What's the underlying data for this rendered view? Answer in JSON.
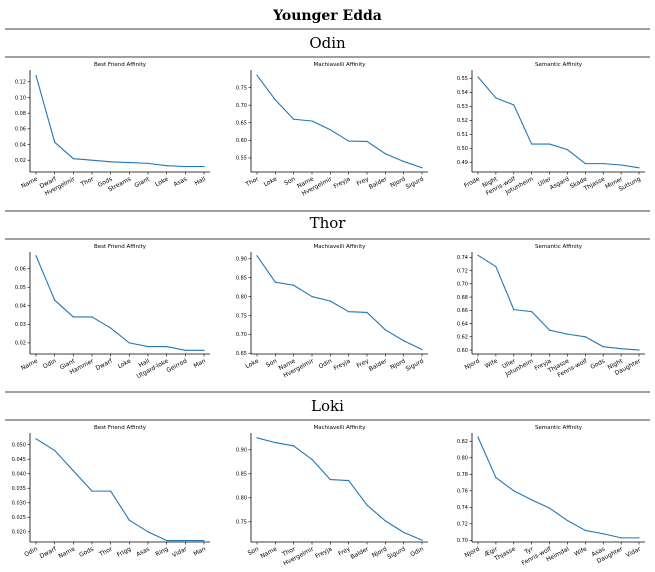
{
  "title": "Younger Edda",
  "sections": [
    {
      "name": "Odin",
      "charts": [
        {
          "type": "line",
          "title": "Best Friend Affinity",
          "categories": [
            "Name",
            "Dwarf",
            "Hvergelmir",
            "Thor",
            "Gods",
            "Streams",
            "Giant",
            "Loke",
            "Asas",
            "Hall"
          ],
          "values": [
            0.128,
            0.043,
            0.022,
            0.02,
            0.018,
            0.017,
            0.016,
            0.013,
            0.012,
            0.012
          ],
          "ylim": [
            0.005,
            0.135
          ],
          "yticks": [
            "0.02",
            "0.04",
            "0.06",
            "0.08",
            "0.10",
            "0.12"
          ]
        },
        {
          "type": "line",
          "title": "Machiavelli Affinity",
          "categories": [
            "Thor",
            "Loke",
            "Son",
            "Name",
            "Hvergelmir",
            "Freyja",
            "Frey",
            "Balder",
            "Njord",
            "Sigurd"
          ],
          "values": [
            0.785,
            0.715,
            0.66,
            0.655,
            0.63,
            0.598,
            0.597,
            0.562,
            0.54,
            0.522
          ],
          "ylim": [
            0.51,
            0.8
          ],
          "yticks": [
            "0.55",
            "0.60",
            "0.65",
            "0.70",
            "0.75"
          ]
        },
        {
          "type": "line",
          "title": "Semantic Affinity",
          "categories": [
            "Frode",
            "Night",
            "Fenris-wolf",
            "Jotunheim",
            "Uller",
            "Asgard",
            "Skade",
            "Thjasse",
            "Mimer",
            "Suttung"
          ],
          "values": [
            0.551,
            0.536,
            0.531,
            0.503,
            0.503,
            0.499,
            0.489,
            0.489,
            0.488,
            0.486
          ],
          "ylim": [
            0.483,
            0.556
          ],
          "yticks": [
            "0.49",
            "0.50",
            "0.51",
            "0.52",
            "0.53",
            "0.54",
            "0.55"
          ]
        }
      ]
    },
    {
      "name": "Thor",
      "charts": [
        {
          "type": "line",
          "title": "Best Friend Affinity",
          "categories": [
            "Name",
            "Odin",
            "Giant",
            "Hammer",
            "Dwarf",
            "Loke",
            "Hall",
            "Utgard-loke",
            "Geirrod",
            "Man"
          ],
          "values": [
            0.067,
            0.043,
            0.034,
            0.034,
            0.028,
            0.02,
            0.018,
            0.018,
            0.016,
            0.016
          ],
          "ylim": [
            0.014,
            0.069
          ],
          "yticks": [
            "0.02",
            "0.03",
            "0.04",
            "0.05",
            "0.06"
          ]
        },
        {
          "type": "line",
          "title": "Machiavelli Affinity",
          "categories": [
            "Loke",
            "Son",
            "Name",
            "Hvergelmir",
            "Odin",
            "Freyja",
            "Frey",
            "Balder",
            "Njord",
            "Sigurd"
          ],
          "values": [
            0.908,
            0.838,
            0.83,
            0.8,
            0.788,
            0.76,
            0.758,
            0.712,
            0.683,
            0.66
          ],
          "ylim": [
            0.648,
            0.918
          ],
          "yticks": [
            "0.65",
            "0.70",
            "0.75",
            "0.80",
            "0.85",
            "0.90"
          ]
        },
        {
          "type": "line",
          "title": "Semantic Affinity",
          "categories": [
            "Njord",
            "Wife",
            "Uller",
            "Jotunheim",
            "Freyja",
            "Thjasse",
            "Fenris-wolf",
            "Gods",
            "Night",
            "Daughter"
          ],
          "values": [
            0.743,
            0.726,
            0.661,
            0.658,
            0.63,
            0.624,
            0.62,
            0.605,
            0.602,
            0.6
          ],
          "ylim": [
            0.594,
            0.748
          ],
          "yticks": [
            "0.60",
            "0.62",
            "0.64",
            "0.66",
            "0.68",
            "0.70",
            "0.72",
            "0.74"
          ]
        }
      ]
    },
    {
      "name": "Loki",
      "charts": [
        {
          "type": "line",
          "title": "Best Friend Affinity",
          "categories": [
            "Odin",
            "Dwarf",
            "Name",
            "Gods",
            "Thor",
            "Frigg",
            "Asas",
            "Ring",
            "Vidar",
            "Man"
          ],
          "values": [
            0.052,
            0.048,
            0.041,
            0.034,
            0.034,
            0.024,
            0.02,
            0.017,
            0.017,
            0.017
          ],
          "ylim": [
            0.0165,
            0.054
          ],
          "yticks": [
            "0.020",
            "0.025",
            "0.030",
            "0.035",
            "0.040",
            "0.045",
            "0.050"
          ]
        },
        {
          "type": "line",
          "title": "Machiavelli Affinity",
          "categories": [
            "Son",
            "Name",
            "Thor",
            "Hvergelmir",
            "Freyja",
            "Frey",
            "Balder",
            "Njord",
            "Sigurd",
            "Odin"
          ],
          "values": [
            0.925,
            0.915,
            0.908,
            0.88,
            0.838,
            0.836,
            0.785,
            0.752,
            0.728,
            0.712
          ],
          "ylim": [
            0.708,
            0.935
          ],
          "yticks": [
            "0.75",
            "0.80",
            "0.85",
            "0.90"
          ]
        },
        {
          "type": "line",
          "title": "Semantic Affinity",
          "categories": [
            "Njord",
            "Ægir",
            "Thjasse",
            "Tyr",
            "Fenris-wolf",
            "Heimdal",
            "Wife",
            "Asas",
            "Daughter",
            "Vidar"
          ],
          "values": [
            0.825,
            0.776,
            0.76,
            0.749,
            0.739,
            0.724,
            0.712,
            0.708,
            0.703,
            0.703
          ],
          "ylim": [
            0.698,
            0.83
          ],
          "yticks": [
            "0.70",
            "0.72",
            "0.74",
            "0.76",
            "0.78",
            "0.80",
            "0.82"
          ]
        }
      ]
    }
  ]
}
